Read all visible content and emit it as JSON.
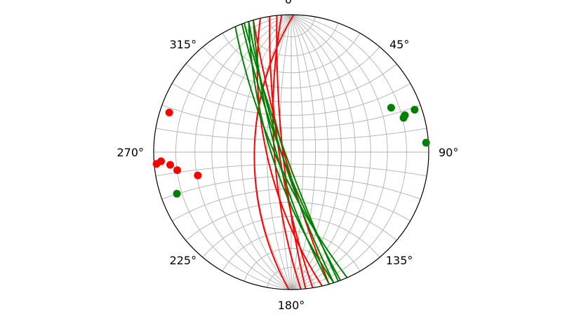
{
  "chart_data": {
    "type": "scatter",
    "title": "",
    "projection": "equal-angle stereonet (lower hemisphere)",
    "grid": true,
    "azimuth_labels": [
      {
        "angle": 0,
        "text": "0°"
      },
      {
        "angle": 45,
        "text": "45°"
      },
      {
        "angle": 90,
        "text": "90°"
      },
      {
        "angle": 135,
        "text": "135°"
      },
      {
        "angle": 180,
        "text": "180°"
      },
      {
        "angle": 225,
        "text": "225°"
      },
      {
        "angle": 270,
        "text": "270°"
      },
      {
        "angle": 315,
        "text": "315°"
      }
    ],
    "series": [
      {
        "color": "#ff0000",
        "great_circles": [
          {
            "strike": 167,
            "dip": 70
          },
          {
            "strike": 171,
            "dip": 80
          },
          {
            "strike": 174,
            "dip": 83
          },
          {
            "strike": 181,
            "dip": 60
          },
          {
            "strike": 176,
            "dip": 76
          },
          {
            "strike": 164,
            "dip": 84
          }
        ],
        "poles": [
          {
            "trend": 256,
            "plunge": 20
          },
          {
            "trend": 261,
            "plunge": 10
          },
          {
            "trend": 264,
            "plunge": 7
          },
          {
            "trend": 266,
            "plunge": 3
          },
          {
            "trend": 265,
            "plunge": 1
          },
          {
            "trend": 288,
            "plunge": 4
          }
        ]
      },
      {
        "color": "#008000",
        "great_circles": [
          {
            "strike": 156,
            "dip": 77
          },
          {
            "strike": 159,
            "dip": 82
          },
          {
            "strike": 160,
            "dip": 85
          },
          {
            "strike": 162,
            "dip": 74
          },
          {
            "strike": 162,
            "dip": 82
          },
          {
            "strike": 164,
            "dip": 78
          }
        ],
        "poles": [
          {
            "trend": 66,
            "plunge": 13
          },
          {
            "trend": 71,
            "plunge": 3
          },
          {
            "trend": 72,
            "plunge": 8
          },
          {
            "trend": 73,
            "plunge": 9
          },
          {
            "trend": 86,
            "plunge": 1
          },
          {
            "trend": 250,
            "plunge": 7
          }
        ]
      }
    ]
  }
}
